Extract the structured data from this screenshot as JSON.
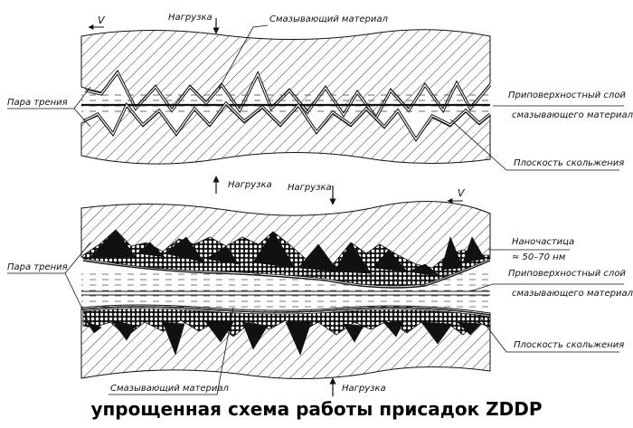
{
  "caption": "упрощенная схема работы присадок ZDDP",
  "top_panel": {
    "velocity_label": "V",
    "load_top": "Нагрузка",
    "load_bottom": "Нагрузка",
    "lubricant": "Смазывающий материал",
    "friction_pair": "Пара трения",
    "surface_layer_line1": "Приповерхностный слой",
    "surface_layer_line2": "смазывающего материала",
    "slip_plane": "Плоскость скольжения"
  },
  "bottom_panel": {
    "velocity_label": "V",
    "load_top": "Нагрузка",
    "load_bottom": "Нагрузка",
    "lubricant": "Смазывающий материал",
    "friction_pair": "Пара трения",
    "nanoparticle_line1": "Наночастица",
    "nanoparticle_line2": "≈ 50–70 нм",
    "surface_layer_line1": "Приповерхностный слой",
    "surface_layer_line2": "смазывающего материала",
    "slip_plane": "Плоскость скольжения"
  }
}
